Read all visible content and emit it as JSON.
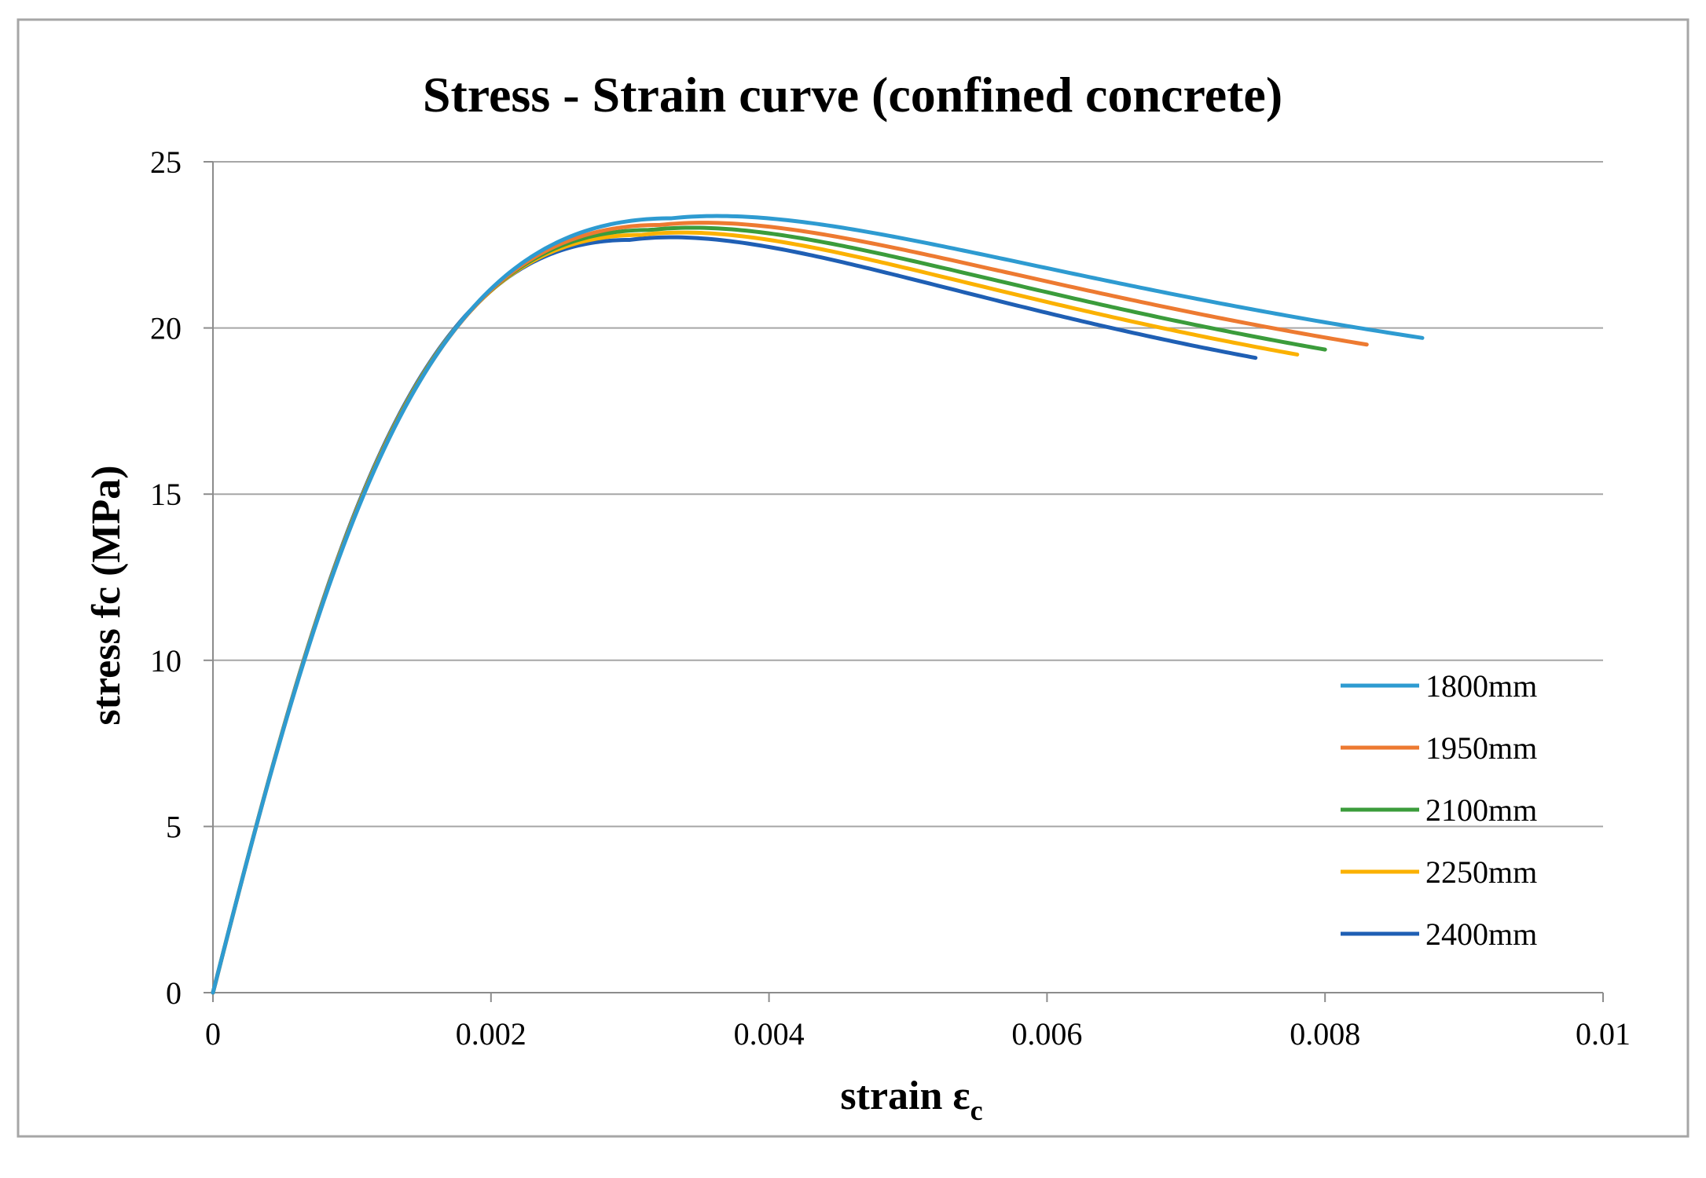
{
  "chart_data": {
    "type": "line",
    "title": "Stress - Strain curve (confined concrete)",
    "xlabel": "strain ε",
    "xlabel_subscript": "c",
    "ylabel": "stress fc (MPa)",
    "xlim": [
      0,
      0.01
    ],
    "ylim": [
      0,
      25
    ],
    "x_ticks": [
      0,
      0.002,
      0.004,
      0.006,
      0.008,
      0.01
    ],
    "x_tick_labels": [
      "0",
      "0.002",
      "0.004",
      "0.006",
      "0.008",
      "0.01"
    ],
    "y_ticks": [
      0,
      5,
      10,
      15,
      20,
      25
    ],
    "y_tick_labels": [
      "0",
      "5",
      "10",
      "15",
      "20",
      "25"
    ],
    "grid": "horizontal",
    "legend_position": "right",
    "series": [
      {
        "name": "1800mm",
        "color": "#2E9BD1",
        "peak_strain": 0.0033,
        "peak_stress": 23.3,
        "end_strain": 0.0087,
        "end_stress": 19.7
      },
      {
        "name": "1950mm",
        "color": "#ED7A31",
        "peak_strain": 0.00322,
        "peak_stress": 23.1,
        "end_strain": 0.0083,
        "end_stress": 19.5
      },
      {
        "name": "2100mm",
        "color": "#3B9C3B",
        "peak_strain": 0.00315,
        "peak_stress": 22.95,
        "end_strain": 0.008,
        "end_stress": 19.35
      },
      {
        "name": "2250mm",
        "color": "#FBB100",
        "peak_strain": 0.00308,
        "peak_stress": 22.8,
        "end_strain": 0.0078,
        "end_stress": 19.2
      },
      {
        "name": "2400mm",
        "color": "#1F5FB4",
        "peak_strain": 0.003,
        "peak_stress": 22.65,
        "end_strain": 0.0075,
        "end_stress": 19.1
      }
    ]
  }
}
